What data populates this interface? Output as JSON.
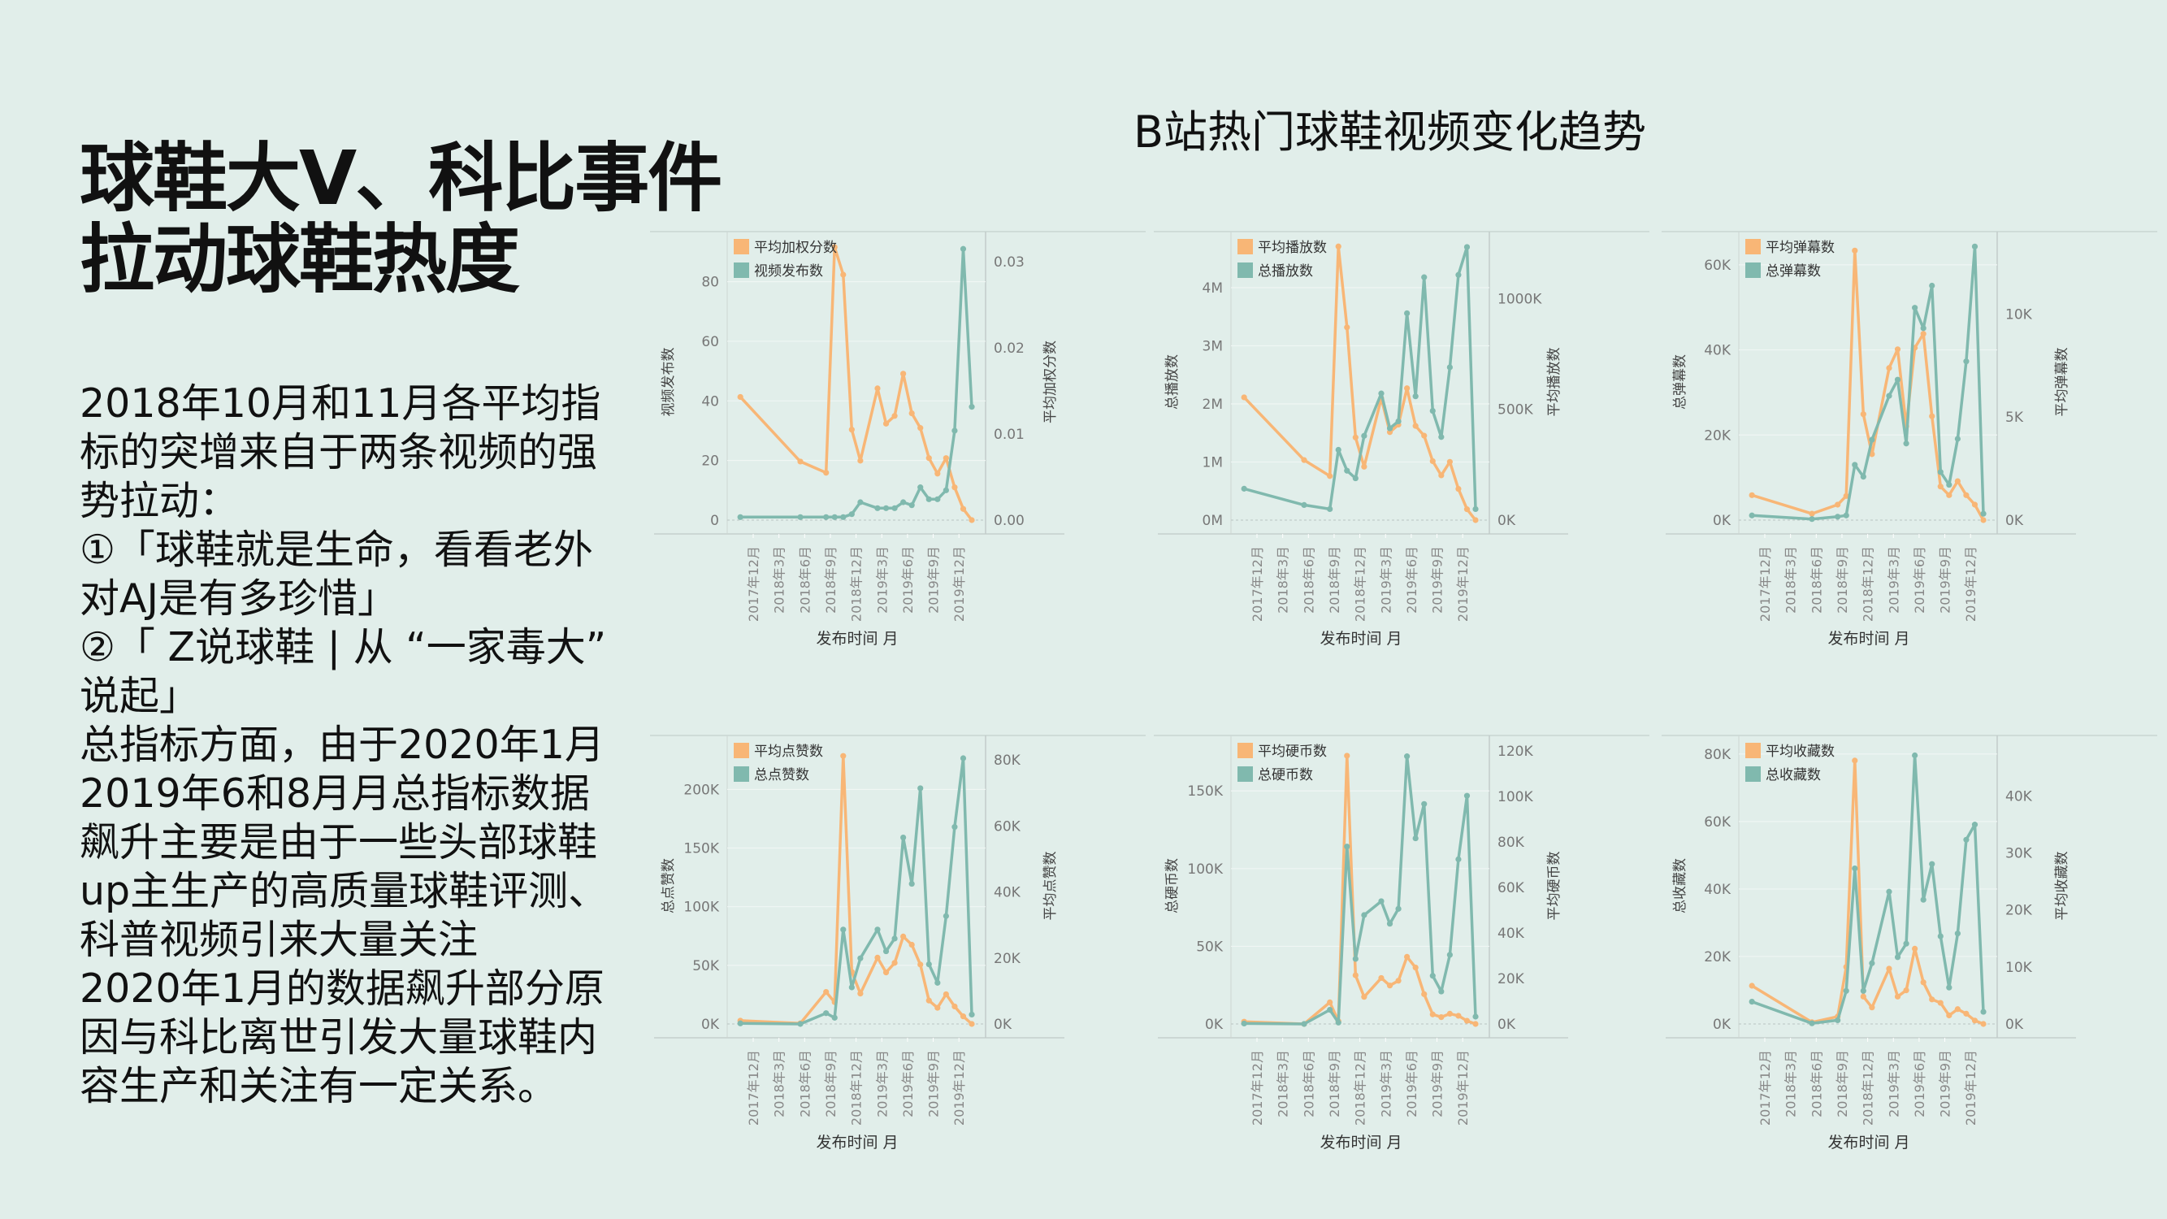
{
  "headline": {
    "lines": [
      "球鞋大V、科比事件",
      "拉动球鞋热度"
    ]
  },
  "body": {
    "lines": [
      "2018年10月和11月各平均指",
      "标的突增来自于两条视频的强",
      "势拉动：",
      "①「球鞋就是生命，看看老外",
      "对AJ是有多珍惜」",
      "②「 Z说球鞋 | 从 “一家毒大”",
      "说起」",
      "总指标方面，由于2020年1月",
      "2019年6和8月月总指标数据",
      "飙升主要是由于一些头部球鞋",
      "up主生产的高质量球鞋评测、",
      "科普视频引来大量关注",
      "2020年1月的数据飙升部分原",
      "因与科比离世引发大量球鞋内",
      "容生产和关注有一定关系。"
    ]
  },
  "colors": {
    "orange": "#f8b676",
    "teal": "#80b9ae",
    "background": "#e1eeea"
  },
  "chart_data": {
    "title": "B站热门球鞋视频变化趋势",
    "type": "line",
    "xlabel": "发布时间 月",
    "x_tick_labels": [
      "2017年12月",
      "2018年3月",
      "2018年6月",
      "2018年9月",
      "2018年12月",
      "2019年3月",
      "2019年6月",
      "2019年9月",
      "2019年12月"
    ],
    "x": [
      "2017-11",
      "2018-06",
      "2018-09",
      "2018-10",
      "2018-11",
      "2018-12",
      "2019-01",
      "2019-03",
      "2019-04",
      "2019-05",
      "2019-06",
      "2019-07",
      "2019-08",
      "2019-09",
      "2019-10",
      "2019-11",
      "2019-12",
      "2020-01",
      "2020-02"
    ],
    "x_month_index": [
      -1,
      6,
      9,
      10,
      11,
      12,
      13,
      15,
      16,
      17,
      18,
      19,
      20,
      21,
      22,
      23,
      24,
      25,
      26
    ],
    "charts": [
      {
        "left_label": "视频发布数",
        "right_label": "平均加权分数",
        "left_top": 96.8,
        "right_top": 0.0335,
        "left_ticks": [
          {
            "v": 0,
            "label": "0"
          },
          {
            "v": 20,
            "label": "20"
          },
          {
            "v": 40,
            "label": "40"
          },
          {
            "v": 60,
            "label": "60"
          },
          {
            "v": 80,
            "label": "80"
          }
        ],
        "right_ticks": [
          {
            "v": 0,
            "label": "0.00"
          },
          {
            "v": 0.01,
            "label": "0.01"
          },
          {
            "v": 0.02,
            "label": "0.02"
          },
          {
            "v": 0.03,
            "label": "0.03"
          }
        ],
        "series": [
          {
            "name": "平均加权分数",
            "axis": "right",
            "color": "orange",
            "values": [
              0.0143,
              0.0068,
              0.0055,
              0.0317,
              0.0285,
              0.0105,
              0.0069,
              0.0153,
              0.0112,
              0.0121,
              0.017,
              0.0124,
              0.0107,
              0.0072,
              0.0054,
              0.0072,
              0.0038,
              0.0013,
              0.0
            ]
          },
          {
            "name": "视频发布数",
            "axis": "left",
            "color": "teal",
            "values": [
              1,
              1,
              1,
              1,
              1,
              2,
              6,
              4,
              4,
              4,
              6,
              5,
              11,
              7,
              7,
              10,
              30,
              91,
              38
            ]
          }
        ]
      },
      {
        "left_label": "总播放数",
        "right_label": "平均播放数",
        "left_top": 4965000,
        "right_top": 1302000,
        "left_ticks": [
          {
            "v": 0,
            "label": "0M"
          },
          {
            "v": 1000000,
            "label": "1M"
          },
          {
            "v": 2000000,
            "label": "2M"
          },
          {
            "v": 3000000,
            "label": "3M"
          },
          {
            "v": 4000000,
            "label": "4M"
          }
        ],
        "right_ticks": [
          {
            "v": 0,
            "label": "0K"
          },
          {
            "v": 500000,
            "label": "500K"
          },
          {
            "v": 1000000,
            "label": "1000K"
          }
        ],
        "series": [
          {
            "name": "平均播放数",
            "axis": "right",
            "color": "orange",
            "values": [
              554000,
              271000,
              199000,
              1235000,
              870000,
              373000,
              241000,
              550000,
              397000,
              431000,
              595000,
              425000,
              381000,
              266000,
              202000,
              263000,
              141000,
              49000,
              0
            ]
          },
          {
            "name": "总播放数",
            "axis": "left",
            "color": "teal",
            "values": [
              540000,
              260000,
              190000,
              1210000,
              850000,
              720000,
              1450000,
              2180000,
              1580000,
              1700000,
              3560000,
              2130000,
              4180000,
              1880000,
              1430000,
              2630000,
              4220000,
              4700000,
              190000
            ]
          }
        ]
      },
      {
        "left_label": "总弹幕数",
        "right_label": "平均弹幕数",
        "left_top": 67800,
        "right_top": 14000,
        "left_ticks": [
          {
            "v": 0,
            "label": "0K"
          },
          {
            "v": 20000,
            "label": "20K"
          },
          {
            "v": 40000,
            "label": "40K"
          },
          {
            "v": 60000,
            "label": "60K"
          }
        ],
        "right_ticks": [
          {
            "v": 0,
            "label": "0K"
          },
          {
            "v": 5000,
            "label": "5K"
          },
          {
            "v": 10000,
            "label": "10K"
          }
        ],
        "series": [
          {
            "name": "平均弹幕数",
            "axis": "right",
            "color": "orange",
            "values": [
              1210,
              310,
              750,
              1170,
              13080,
              5140,
              3200,
              7380,
              8290,
              4550,
              8360,
              9040,
              5040,
              1630,
              1210,
              1890,
              1210,
              750,
              0
            ]
          },
          {
            "name": "总弹幕数",
            "axis": "left",
            "color": "teal",
            "values": [
              1100,
              250,
              800,
              1100,
              13000,
              10200,
              18900,
              29200,
              33000,
              18000,
              49900,
              45100,
              55100,
              11300,
              8300,
              19100,
              37300,
              64300,
              1500
            ]
          }
        ]
      },
      {
        "left_label": "总点赞数",
        "right_label": "平均点赞数",
        "left_top": 246000,
        "right_top": 87400,
        "left_ticks": [
          {
            "v": 0,
            "label": "0K"
          },
          {
            "v": 50000,
            "label": "50K"
          },
          {
            "v": 100000,
            "label": "100K"
          },
          {
            "v": 150000,
            "label": "150K"
          },
          {
            "v": 200000,
            "label": "200K"
          }
        ],
        "right_ticks": [
          {
            "v": 0,
            "label": "0K"
          },
          {
            "v": 20000,
            "label": "20K"
          },
          {
            "v": 40000,
            "label": "40K"
          },
          {
            "v": 60000,
            "label": "60K"
          },
          {
            "v": 80000,
            "label": "80K"
          }
        ],
        "series": [
          {
            "name": "平均点赞数",
            "axis": "right",
            "color": "orange",
            "values": [
              1000,
              200,
              9700,
              6600,
              81200,
              15800,
              9200,
              20100,
              15600,
              18500,
              26500,
              24000,
              18000,
              7100,
              4900,
              9000,
              5300,
              2300,
              0
            ]
          },
          {
            "name": "总点赞数",
            "axis": "left",
            "color": "teal",
            "values": [
              500,
              0,
              9200,
              5300,
              80500,
              31200,
              56000,
              80500,
              62000,
              72800,
              159000,
              119500,
              201000,
              50900,
              35100,
              92000,
              168000,
              226600,
              8000
            ]
          }
        ]
      },
      {
        "left_label": "总硬币数",
        "right_label": "平均硬币数",
        "left_top": 185700,
        "right_top": 126800,
        "left_ticks": [
          {
            "v": 0,
            "label": "0K"
          },
          {
            "v": 50000,
            "label": "50K"
          },
          {
            "v": 100000,
            "label": "100K"
          },
          {
            "v": 150000,
            "label": "150K"
          }
        ],
        "right_ticks": [
          {
            "v": 0,
            "label": "0K"
          },
          {
            "v": 20000,
            "label": "20K"
          },
          {
            "v": 40000,
            "label": "40K"
          },
          {
            "v": 60000,
            "label": "60K"
          },
          {
            "v": 80000,
            "label": "80K"
          },
          {
            "v": 100000,
            "label": "100K"
          },
          {
            "v": 120000,
            "label": "120K"
          }
        ],
        "series": [
          {
            "name": "平均硬币数",
            "axis": "right",
            "color": "orange",
            "values": [
              1000,
              0,
              9500,
              1200,
              117900,
              21400,
              11900,
              20200,
              16900,
              19000,
              29500,
              24800,
              13100,
              4200,
              3000,
              4500,
              3600,
              1400,
              0
            ]
          },
          {
            "name": "总硬币数",
            "axis": "left",
            "color": "teal",
            "values": [
              300,
              0,
              9100,
              900,
              114200,
              41900,
              70100,
              79000,
              64500,
              74100,
              172300,
              119500,
              141600,
              31000,
              20900,
              44500,
              106000,
              146900,
              4700
            ]
          }
        ]
      },
      {
        "left_label": "总收藏数",
        "right_label": "平均收藏数",
        "left_top": 85500,
        "right_top": 50600,
        "left_ticks": [
          {
            "v": 0,
            "label": "0K"
          },
          {
            "v": 20000,
            "label": "20K"
          },
          {
            "v": 40000,
            "label": "40K"
          },
          {
            "v": 60000,
            "label": "60K"
          },
          {
            "v": 80000,
            "label": "80K"
          }
        ],
        "right_ticks": [
          {
            "v": 0,
            "label": "0K"
          },
          {
            "v": 10000,
            "label": "10K"
          },
          {
            "v": 20000,
            "label": "20K"
          },
          {
            "v": 30000,
            "label": "30K"
          },
          {
            "v": 40000,
            "label": "40K"
          }
        ],
        "series": [
          {
            "name": "平均收藏数",
            "axis": "right",
            "color": "orange",
            "values": [
              6700,
              300,
              1300,
              10000,
              46200,
              4800,
              2900,
              9700,
              4800,
              5900,
              13200,
              7300,
              4300,
              3700,
              1500,
              2600,
              1800,
              600,
              0
            ]
          },
          {
            "name": "总收藏数",
            "axis": "left",
            "color": "teal",
            "values": [
              6600,
              200,
              1100,
              9800,
              46100,
              9800,
              18000,
              39200,
              19800,
              23800,
              79600,
              36800,
              47400,
              26000,
              10800,
              26800,
              54600,
              59100,
              3600
            ]
          }
        ]
      }
    ]
  }
}
